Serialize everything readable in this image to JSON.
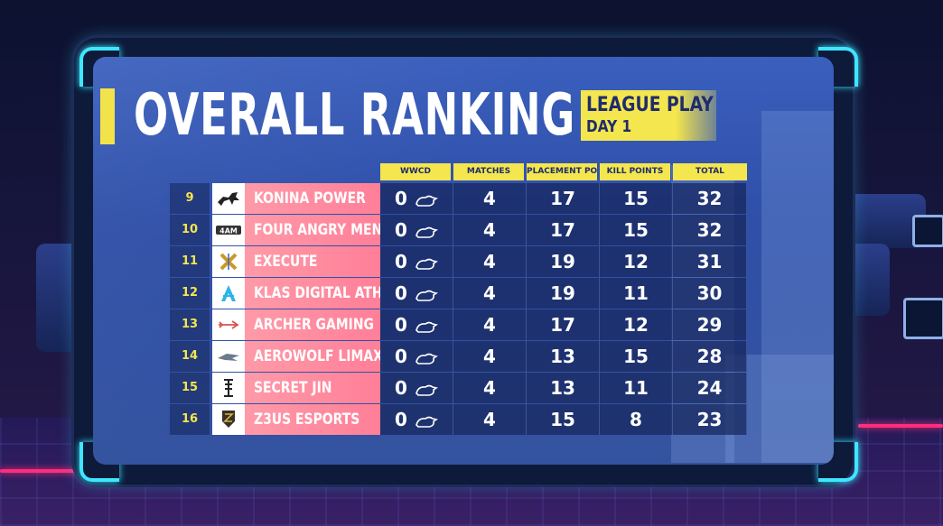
{
  "title": "OVERALL RANKING",
  "subtitle": {
    "line1": "LEAGUE PLAY",
    "line2": "DAY 1"
  },
  "columns": [
    "WWCD",
    "MATCHES",
    "PLACEMENT POINTS",
    "KILL POINTS",
    "TOTAL"
  ],
  "rows": [
    {
      "rank": "9",
      "team": "KONINA POWER",
      "wwcd": "0",
      "matches": "4",
      "placement": "17",
      "kills": "15",
      "total": "32",
      "logo_icon": "horse-logo-icon"
    },
    {
      "rank": "10",
      "team": "FOUR ANGRY MEN",
      "wwcd": "0",
      "matches": "4",
      "placement": "17",
      "kills": "15",
      "total": "32",
      "logo_icon": "4am-logo-icon"
    },
    {
      "rank": "11",
      "team": "EXECUTE",
      "wwcd": "0",
      "matches": "4",
      "placement": "19",
      "kills": "12",
      "total": "31",
      "logo_icon": "execute-logo-icon"
    },
    {
      "rank": "12",
      "team": "KLAS DIGITAL ATHLETICS",
      "wwcd": "0",
      "matches": "4",
      "placement": "19",
      "kills": "11",
      "total": "30",
      "logo_icon": "klas-logo-icon"
    },
    {
      "rank": "13",
      "team": "ARCHER GAMING",
      "wwcd": "0",
      "matches": "4",
      "placement": "17",
      "kills": "12",
      "total": "29",
      "logo_icon": "archer-logo-icon"
    },
    {
      "rank": "14",
      "team": "AEROWOLF LIMAX",
      "wwcd": "0",
      "matches": "4",
      "placement": "13",
      "kills": "15",
      "total": "28",
      "logo_icon": "aerowolf-logo-icon"
    },
    {
      "rank": "15",
      "team": "SECRET JIN",
      "wwcd": "0",
      "matches": "4",
      "placement": "13",
      "kills": "11",
      "total": "24",
      "logo_icon": "secret-jin-logo-icon"
    },
    {
      "rank": "16",
      "team": "Z3US ESPORTS",
      "wwcd": "0",
      "matches": "4",
      "placement": "15",
      "kills": "8",
      "total": "23",
      "logo_icon": "z3us-logo-icon"
    }
  ],
  "colors": {
    "accent_yellow": "#f4e64e",
    "team_pink": "#ff8fa3",
    "frame_cyan": "#3ee6ff",
    "panel_blue": "#2f4fa8"
  }
}
